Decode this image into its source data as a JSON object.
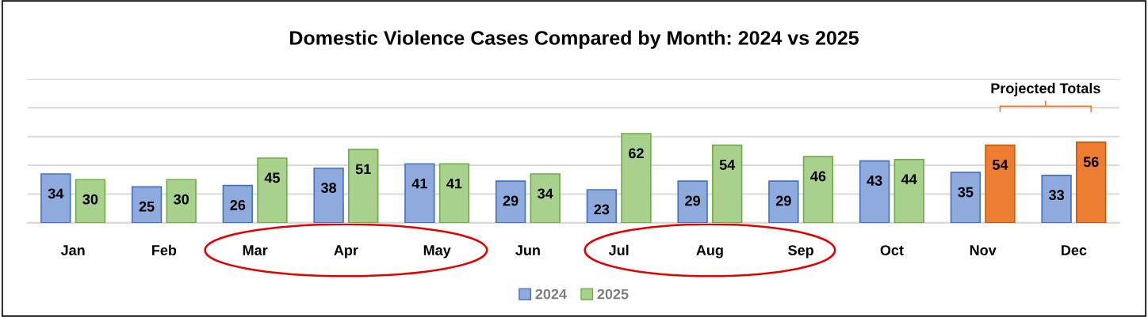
{
  "chart_data": {
    "type": "bar",
    "title": "Domestic Violence Cases Compared by Month: 2024 vs 2025",
    "categories": [
      "Jan",
      "Feb",
      "Mar",
      "Apr",
      "May",
      "Jun",
      "Jul",
      "Aug",
      "Sep",
      "Oct",
      "Nov",
      "Dec"
    ],
    "series": [
      {
        "name": "2024",
        "color": "#8faadc",
        "values": [
          34,
          25,
          26,
          38,
          41,
          29,
          23,
          29,
          29,
          43,
          35,
          33
        ]
      },
      {
        "name": "2025",
        "color": "#a9d18e",
        "colors": [
          "#a9d18e",
          "#a9d18e",
          "#a9d18e",
          "#a9d18e",
          "#a9d18e",
          "#a9d18e",
          "#a9d18e",
          "#a9d18e",
          "#a9d18e",
          "#a9d18e",
          "#ed7d31",
          "#ed7d31"
        ],
        "values": [
          30,
          30,
          45,
          51,
          41,
          34,
          62,
          54,
          46,
          44,
          54,
          56
        ]
      }
    ],
    "ylim": [
      0,
      100
    ],
    "yticks": [
      {
        "value": 0,
        "label": null
      },
      {
        "value": 20,
        "label": null
      },
      {
        "value": 40,
        "label": null
      },
      {
        "value": 60,
        "label": null
      },
      {
        "value": 80,
        "label": null
      },
      {
        "value": 100,
        "label": null
      }
    ],
    "tick_labels": "x",
    "grid": "y",
    "legend": "bottom",
    "data_labels": true,
    "annotations": [
      "Projected Totals"
    ]
  }
}
